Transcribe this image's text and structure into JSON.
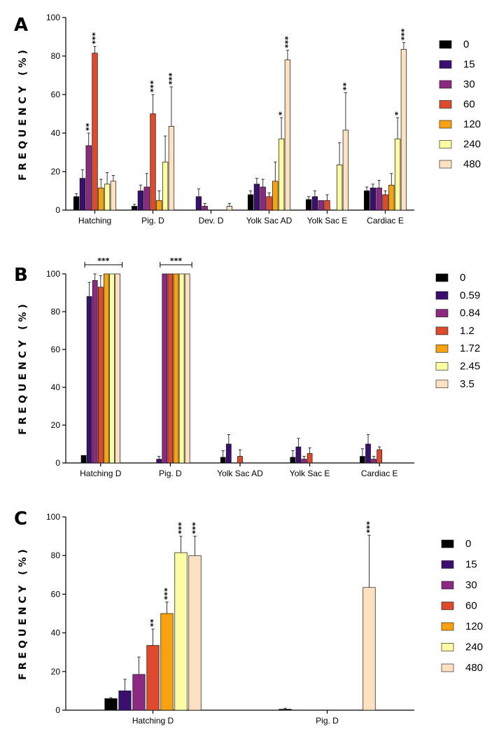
{
  "colors": {
    "levels": [
      "#000000",
      "#3b0f70",
      "#8c2981",
      "#de4a2c",
      "#f7a20e",
      "#fcfca2",
      "#fde1c0"
    ]
  },
  "chart_data": [
    {
      "panel": "A",
      "type": "bar",
      "ylabel": "FREQUENCY (%)",
      "ylim": [
        0,
        100
      ],
      "yticks": [
        0,
        20,
        40,
        60,
        80,
        100
      ],
      "categories": [
        "Hatching",
        "Pig. D",
        "Dev. D",
        "Yolk Sac AD",
        "Yolk Sac E",
        "Cardiac E"
      ],
      "legend": [
        "0",
        "15",
        "30",
        "60",
        "120",
        "240",
        "480"
      ],
      "series": [
        {
          "name": "0",
          "values": [
            7,
            2,
            0,
            8,
            5.5,
            10
          ],
          "errors": [
            1.5,
            1,
            0,
            2,
            1.5,
            2
          ]
        },
        {
          "name": "15",
          "values": [
            16.5,
            10,
            7,
            13.5,
            7,
            11.5
          ],
          "errors": [
            4.5,
            3,
            4,
            3,
            3,
            2
          ]
        },
        {
          "name": "30",
          "values": [
            33.5,
            12,
            2,
            12,
            5,
            11.5
          ],
          "errors": [
            6.5,
            7,
            1.5,
            4,
            0,
            4
          ]
        },
        {
          "name": "60",
          "values": [
            81.5,
            50,
            0,
            7,
            5,
            8
          ],
          "errors": [
            3.5,
            10,
            0,
            2,
            3,
            2
          ]
        },
        {
          "name": "120",
          "values": [
            11.5,
            5,
            0,
            15,
            0,
            13
          ],
          "errors": [
            4.5,
            5,
            0,
            10,
            0,
            6
          ]
        },
        {
          "name": "240",
          "values": [
            13.5,
            25,
            0,
            37,
            23.5,
            37
          ],
          "errors": [
            6,
            13.5,
            0,
            11,
            11.5,
            11
          ]
        },
        {
          "name": "480",
          "values": [
            15,
            43.5,
            2,
            78,
            41.5,
            83.5
          ],
          "errors": [
            3,
            20.5,
            1.5,
            5,
            19.5,
            3.5
          ]
        }
      ],
      "annotations": [
        {
          "category": 0,
          "series": 2,
          "text": "**"
        },
        {
          "category": 0,
          "series": 3,
          "text": "***"
        },
        {
          "category": 1,
          "series": 3,
          "text": "***"
        },
        {
          "category": 1,
          "series": 6,
          "text": "***"
        },
        {
          "category": 3,
          "series": 5,
          "text": "*"
        },
        {
          "category": 3,
          "series": 6,
          "text": "***"
        },
        {
          "category": 4,
          "series": 6,
          "text": "**"
        },
        {
          "category": 5,
          "series": 5,
          "text": "*"
        },
        {
          "category": 5,
          "series": 6,
          "text": "***"
        }
      ]
    },
    {
      "panel": "B",
      "type": "bar",
      "ylabel": "FREQUENCY (%)",
      "ylim": [
        0,
        100
      ],
      "yticks": [
        0,
        20,
        40,
        60,
        80,
        100
      ],
      "categories": [
        "Hatching D",
        "Pig. D",
        "Yolk Sac AD",
        "Yolk Sac E",
        "Cardiac E"
      ],
      "legend": [
        "0",
        "0.59",
        "0.84",
        "1.2",
        "1.72",
        "2.45",
        "3.5"
      ],
      "series": [
        {
          "name": "0",
          "values": [
            4,
            0,
            3,
            3,
            3.5
          ],
          "errors": [
            0,
            0,
            3.5,
            3.5,
            4
          ]
        },
        {
          "name": "0.59",
          "values": [
            88,
            2,
            10,
            8.5,
            10
          ],
          "errors": [
            7.5,
            1.5,
            5,
            4.5,
            5
          ]
        },
        {
          "name": "0.84",
          "values": [
            96.5,
            100,
            0,
            2,
            2
          ],
          "errors": [
            3.5,
            0,
            0,
            1.5,
            1.5
          ]
        },
        {
          "name": "1.2",
          "values": [
            93,
            100,
            3.5,
            5,
            7
          ],
          "errors": [
            6,
            0,
            3.5,
            3,
            1.5
          ]
        },
        {
          "name": "1.72",
          "values": [
            100,
            100,
            0,
            0,
            0
          ],
          "errors": [
            0,
            0,
            0,
            0,
            0
          ]
        },
        {
          "name": "2.45",
          "values": [
            100,
            100,
            0,
            0,
            0
          ],
          "errors": [
            0,
            0,
            0,
            0,
            0
          ]
        },
        {
          "name": "3.5",
          "values": [
            100,
            100,
            0,
            0,
            0
          ],
          "errors": [
            0,
            0,
            0,
            0,
            0
          ]
        }
      ],
      "brackets": [
        {
          "category": 0,
          "from_series": 1,
          "to_series": 6,
          "text": "***"
        },
        {
          "category": 1,
          "from_series": 2,
          "to_series": 6,
          "text": "***"
        }
      ]
    },
    {
      "panel": "C",
      "type": "bar",
      "ylabel": "FREQUENCY (%)",
      "ylim": [
        0,
        100
      ],
      "yticks": [
        0,
        20,
        40,
        60,
        80,
        100
      ],
      "categories": [
        "Hatching D",
        "Pig. D"
      ],
      "legend": [
        "0",
        "15",
        "30",
        "60",
        "120",
        "240",
        "480"
      ],
      "series": [
        {
          "name": "0",
          "values": [
            6,
            0.5
          ],
          "errors": [
            0.5,
            0.5
          ]
        },
        {
          "name": "15",
          "values": [
            10,
            0
          ],
          "errors": [
            6,
            0
          ]
        },
        {
          "name": "30",
          "values": [
            18.5,
            0
          ],
          "errors": [
            9,
            0
          ]
        },
        {
          "name": "60",
          "values": [
            33.5,
            0
          ],
          "errors": [
            8.5,
            0
          ]
        },
        {
          "name": "120",
          "values": [
            50,
            0
          ],
          "errors": [
            6,
            0
          ]
        },
        {
          "name": "240",
          "values": [
            81.5,
            0
          ],
          "errors": [
            8.5,
            0
          ]
        },
        {
          "name": "480",
          "values": [
            80,
            63.5
          ],
          "errors": [
            10,
            27
          ]
        }
      ],
      "annotations": [
        {
          "category": 0,
          "series": 3,
          "text": "**"
        },
        {
          "category": 0,
          "series": 4,
          "text": "***"
        },
        {
          "category": 0,
          "series": 5,
          "text": "***"
        },
        {
          "category": 0,
          "series": 6,
          "text": "***"
        },
        {
          "category": 1,
          "series": 6,
          "text": "***"
        }
      ]
    }
  ]
}
